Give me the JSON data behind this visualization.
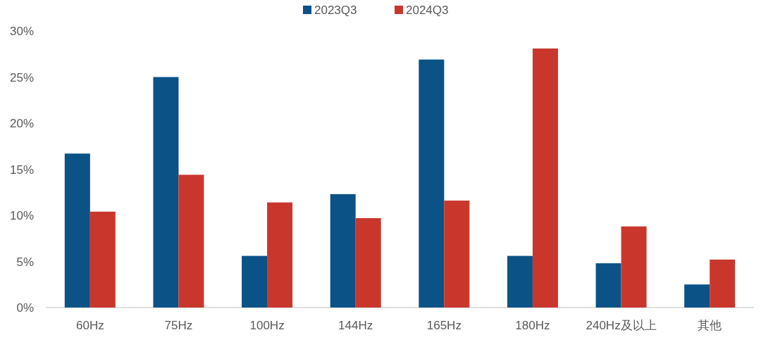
{
  "chart_data": {
    "type": "bar",
    "categories": [
      "60Hz",
      "75Hz",
      "100Hz",
      "144Hz",
      "165Hz",
      "180Hz",
      "240Hz及以上",
      "其他"
    ],
    "series": [
      {
        "name": "2023Q3",
        "color": "#0b5286",
        "values": [
          16.7,
          25.0,
          5.6,
          12.3,
          26.9,
          5.6,
          4.8,
          2.5
        ]
      },
      {
        "name": "2024Q3",
        "color": "#c9372c",
        "values": [
          10.4,
          14.4,
          11.4,
          9.7,
          11.6,
          28.1,
          8.8,
          5.2
        ]
      }
    ],
    "ylim": [
      0,
      30
    ],
    "yticks": [
      {
        "value": 0,
        "label": "0%"
      },
      {
        "value": 5,
        "label": "5%"
      },
      {
        "value": 10,
        "label": "10%"
      },
      {
        "value": 15,
        "label": "15%"
      },
      {
        "value": 20,
        "label": "20%"
      },
      {
        "value": 25,
        "label": "25%"
      },
      {
        "value": 30,
        "label": "30%"
      }
    ],
    "grid": false,
    "legend": "top"
  }
}
